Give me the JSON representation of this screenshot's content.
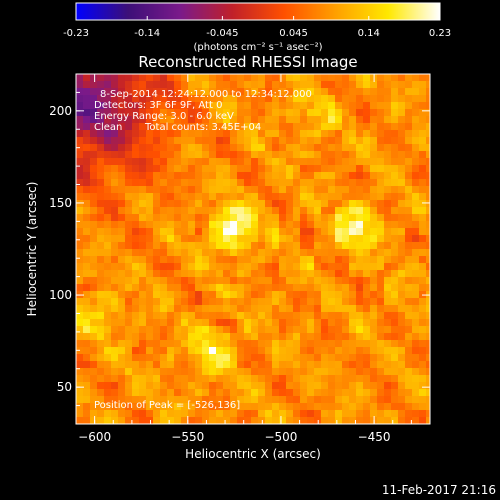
{
  "chart_data": {
    "type": "heatmap",
    "title": "Reconstructed RHESSI Image",
    "xlabel": "Heliocentric X (arcsec)",
    "ylabel": "Heliocentric Y (arcsec)",
    "xlim": [
      -610,
      -420
    ],
    "ylim": [
      30,
      220
    ],
    "x_ticks": [
      -600,
      -550,
      -500,
      -450
    ],
    "y_ticks": [
      50,
      100,
      150,
      200
    ],
    "colorbar": {
      "range": [
        -0.23,
        0.23
      ],
      "ticks": [
        "-0.23",
        "-0.14",
        "-0.045",
        "0.045",
        "0.14",
        "0.23"
      ],
      "unit_label": "(photons cm⁻² s⁻¹ asec⁻²)",
      "colors": [
        "#0000ff",
        "#3c0f78",
        "#7a1a8a",
        "#c0202a",
        "#ff5000",
        "#ffa000",
        "#ffe800",
        "#ffffff"
      ]
    },
    "annotations": {
      "time_range": "8-Sep-2014 12:24:12.000 to 12:34:12.000",
      "detectors": "Detectors: 3F 6F 9F, Att 0",
      "energy_range": "Energy Range: 3.0 - 6.0 keV",
      "clean_label": "Clean",
      "total_counts": "Total counts: 3.45E+04",
      "peak_position": "Position of Peak = [-526,136]"
    },
    "sources": [
      {
        "x": -526,
        "y": 136,
        "value": 0.23
      },
      {
        "x": -459,
        "y": 137,
        "value": 0.2
      },
      {
        "x": -537,
        "y": 70,
        "value": 0.17
      },
      {
        "x": -597,
        "y": 90,
        "value": 0.14
      },
      {
        "x": -483,
        "y": 198,
        "value": 0.13
      },
      {
        "x": -430,
        "y": 102,
        "value": 0.1
      }
    ],
    "low_region": {
      "x": -605,
      "y": 205,
      "value": -0.05
    }
  },
  "footer": {
    "timestamp": "11-Feb-2017 21:16"
  }
}
